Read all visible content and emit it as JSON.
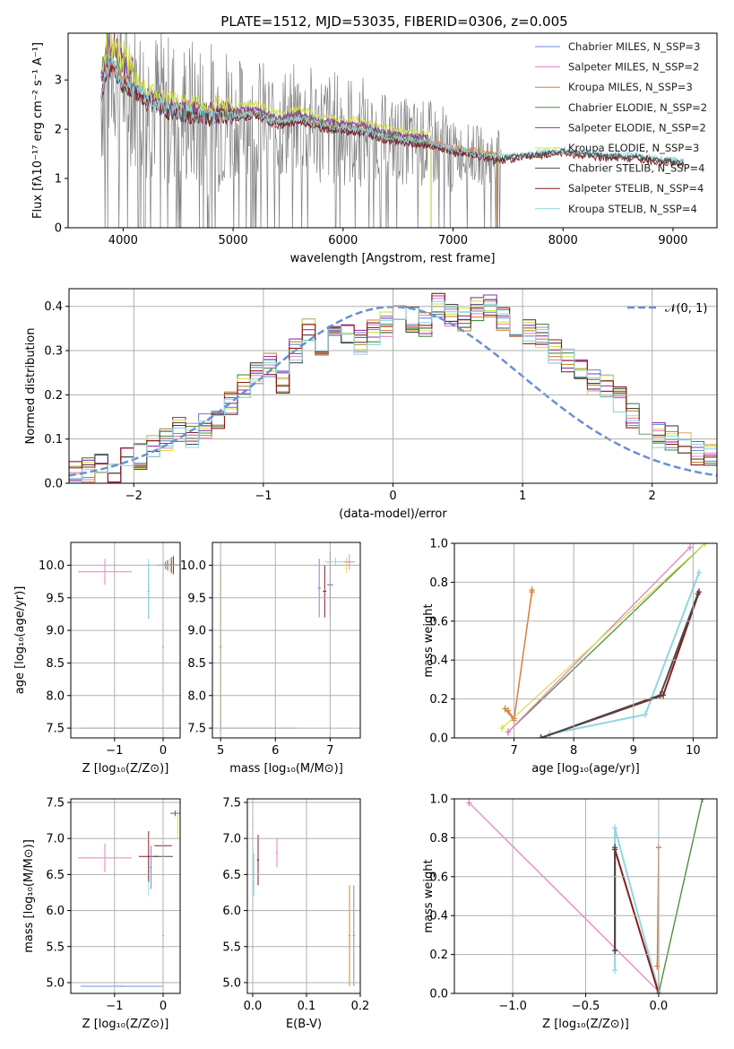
{
  "colors": {
    "chabrier_miles": "#6f8fd8",
    "salpeter_miles": "#e882c5",
    "kroupa_miles": "#c88a2a",
    "chabrier_elodie": "#4c8a44",
    "salpeter_elodie": "#9333a8",
    "kroupa_elodie": "#d6e24a",
    "chabrier_stelib": "#4a4a4a",
    "salpeter_stelib": "#8a1c1c",
    "kroupa_stelib": "#8fd8e0",
    "data_grey": "#808080",
    "orange": "#e07a3a",
    "gauss_blue": "#6a8fd8",
    "grid": "#b0b0b0"
  },
  "chart_data": [
    {
      "id": "spectrum",
      "type": "line",
      "title": "PLATE=1512, MJD=53035, FIBERID=0306, z=0.005",
      "xlabel": "wavelength [Angstrom, rest frame]",
      "ylabel": "Flux [fλ10⁻¹⁷ erg cm⁻² s⁻¹ A⁻¹]",
      "xlim": [
        3500,
        9400
      ],
      "ylim": [
        0,
        3.95
      ],
      "xticks": [
        "4000",
        "5000",
        "6000",
        "7000",
        "8000",
        "9000"
      ],
      "yticks": [
        "0",
        "1",
        "2",
        "3"
      ],
      "grid": false,
      "legend_position": "upper-right",
      "legend": [
        "Chabrier MILES, N_SSP=3",
        "Salpeter MILES, N_SSP=2",
        "Kroupa MILES, N_SSP=3",
        "Chabrier ELODIE, N_SSP=2",
        "Salpeter ELODIE, N_SSP=2",
        "Kroupa ELODIE, N_SSP=3",
        "Chabrier STELIB, N_SSP=4",
        "Salpeter STELIB, N_SSP=4",
        "Kroupa STELIB, N_SSP=4"
      ],
      "model_continuum": {
        "x": [
          3800,
          3850,
          3900,
          4000,
          4100,
          4200,
          4300,
          4400,
          4500,
          4600,
          4700,
          4800,
          4900,
          5000,
          5200,
          5400,
          5600,
          5800,
          6000,
          6200,
          6400,
          6600,
          6800,
          7000,
          7200,
          7400,
          7600,
          7800,
          8000,
          8200,
          8400,
          8600,
          8800,
          9000,
          9100
        ],
        "y": [
          2.6,
          3.2,
          3.3,
          2.9,
          2.8,
          2.6,
          2.5,
          2.4,
          2.35,
          2.3,
          2.3,
          2.25,
          2.3,
          2.25,
          2.3,
          2.1,
          2.2,
          2.05,
          2.0,
          1.95,
          1.8,
          1.75,
          1.7,
          1.55,
          1.5,
          1.4,
          1.45,
          1.5,
          1.55,
          1.5,
          1.45,
          1.45,
          1.4,
          1.35,
          1.32
        ]
      },
      "kroupa_elodie_x_max": 6800,
      "miles_x_max": 7400
    },
    {
      "id": "residuals",
      "type": "histogram",
      "xlabel": "(data-model)/error",
      "ylabel": "Normed distribution",
      "xlim": [
        -2.5,
        2.5
      ],
      "ylim": [
        0,
        0.44
      ],
      "xticks": [
        "−2",
        "−1",
        "0",
        "1",
        "2"
      ],
      "yticks": [
        "0.0",
        "0.1",
        "0.2",
        "0.3",
        "0.4"
      ],
      "grid": true,
      "legend": [
        "𝒩(0, 1)"
      ],
      "legend_position": "upper-right",
      "bin_width": 0.1,
      "bin_start": -2.5,
      "values": [
        0.02,
        0.03,
        0.04,
        0.03,
        0.05,
        0.06,
        0.08,
        0.1,
        0.12,
        0.11,
        0.13,
        0.15,
        0.18,
        0.22,
        0.25,
        0.27,
        0.23,
        0.3,
        0.35,
        0.31,
        0.35,
        0.33,
        0.32,
        0.34,
        0.36,
        0.38,
        0.37,
        0.36,
        0.4,
        0.38,
        0.37,
        0.39,
        0.4,
        0.37,
        0.36,
        0.34,
        0.33,
        0.3,
        0.28,
        0.26,
        0.23,
        0.22,
        0.19,
        0.15,
        0.13,
        0.11,
        0.1,
        0.09,
        0.07,
        0.06
      ]
    },
    {
      "id": "age-vs-z",
      "type": "scatter",
      "xlabel": "Z [log₁₀(Z/Z⊙)]",
      "ylabel": "age  [log₁₀(age/yr)]",
      "xlim": [
        -1.9,
        0.35
      ],
      "ylim": [
        7.35,
        10.35
      ],
      "xticks": [
        "−1",
        "0"
      ],
      "yticks": [
        "7.5",
        "8.0",
        "8.5",
        "9.0",
        "9.5",
        "10.0"
      ],
      "grid": true
    },
    {
      "id": "age-vs-mass",
      "type": "scatter",
      "xlabel": "mass [log₁₀(M/M⊙)]",
      "xlim": [
        4.85,
        7.55
      ],
      "ylim": [
        7.35,
        10.35
      ],
      "xticks": [
        "5",
        "6",
        "7"
      ],
      "yticks": [
        "7.5",
        "8.0",
        "8.5",
        "9.0",
        "9.5",
        "10.0"
      ],
      "grid": true
    },
    {
      "id": "mass-weight-vs-age",
      "type": "line",
      "xlabel": "age  [log₁₀(age/yr)]",
      "ylabel": "mass weight",
      "xlim": [
        6.0,
        10.4
      ],
      "ylim": [
        0,
        1.0
      ],
      "xticks": [
        "7",
        "8",
        "9",
        "10"
      ],
      "yticks": [
        "0.0",
        "0.2",
        "0.4",
        "0.6",
        "0.8",
        "1.0"
      ],
      "grid": true
    },
    {
      "id": "mass-vs-z",
      "type": "scatter",
      "xlabel": "Z [log₁₀(Z/Z⊙)]",
      "ylabel": "mass [log₁₀(M/M⊙)]",
      "xlim": [
        -1.9,
        0.35
      ],
      "ylim": [
        4.85,
        7.55
      ],
      "xticks": [
        "−1",
        "0"
      ],
      "yticks": [
        "5.0",
        "5.5",
        "6.0",
        "6.5",
        "7.0",
        "7.5"
      ],
      "grid": true
    },
    {
      "id": "mass-vs-ebv",
      "type": "scatter",
      "xlabel": "E(B-V)",
      "xlim": [
        -0.01,
        0.2
      ],
      "ylim": [
        4.85,
        7.55
      ],
      "xticks": [
        "0.0",
        "0.1",
        "0.2"
      ],
      "yticks": [
        "5.0",
        "5.5",
        "6.0",
        "6.5",
        "7.0",
        "7.5"
      ],
      "grid": true
    },
    {
      "id": "mass-weight-vs-z",
      "type": "line",
      "xlabel": "Z [log₁₀(Z/Z⊙)]",
      "ylabel": "mass weight",
      "xlim": [
        -1.4,
        0.4
      ],
      "ylim": [
        0,
        1.0
      ],
      "xticks": [
        "−1.0",
        "−0.5",
        "0.0"
      ],
      "yticks": [
        "0.0",
        "0.2",
        "0.4",
        "0.6",
        "0.8",
        "1.0"
      ],
      "grid": true
    }
  ]
}
